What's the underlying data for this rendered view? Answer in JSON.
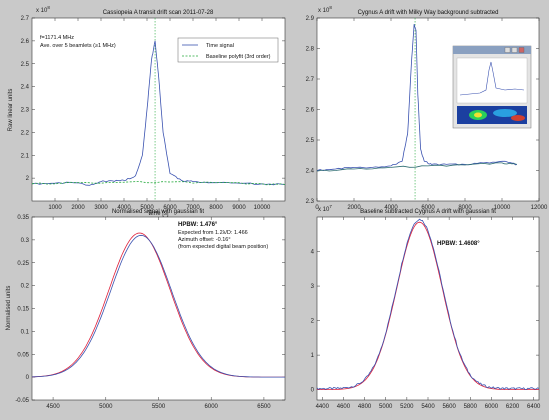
{
  "colors": {
    "figure_bg": "#c9c9c9",
    "axes_bg": "#ffffff",
    "blue": "#3a52b0",
    "red": "#e0203a",
    "green": "#22a83a",
    "teal": "#2f6e72"
  },
  "chart_data": [
    {
      "type": "line",
      "title": "Cassiopeia A transit drift scan 2011-07-28",
      "xlabel": "Time [s]",
      "ylabel": "Raw linear units",
      "exponent": "x 10",
      "exponent_power": "8",
      "xlim": [
        0,
        11000
      ],
      "ylim": [
        1.9,
        2.7
      ],
      "xticks": [
        1000,
        2000,
        3000,
        4000,
        5000,
        6000,
        7000,
        8000,
        9000,
        10000
      ],
      "xtick_labels": [
        "1000",
        "2000",
        "3000",
        "4000",
        "5000",
        "6000",
        "7000",
        "8000",
        "9000",
        "10000"
      ],
      "yticks": [
        2,
        2.1,
        2.2,
        2.3,
        2.4,
        2.5,
        2.6,
        2.7
      ],
      "ytick_labels": [
        "2",
        "2.1",
        "2.2",
        "2.3",
        "2.4",
        "2.5",
        "2.6",
        "2.7"
      ],
      "grid": false,
      "legend_placement": "top-right",
      "legend": [
        "Time signal",
        "Baseline polyfit (3rd order)"
      ],
      "annotations": [
        "f=1171.4 MHz",
        "Ave. over 5 beamlets (≥1 MHz)"
      ],
      "series": [
        {
          "name": "Time signal",
          "color": "#3a52b0",
          "x": [
            0,
            1000,
            2000,
            2500,
            3000,
            3500,
            4000,
            4500,
            4800,
            5000,
            5200,
            5350,
            5500,
            5700,
            6000,
            6500,
            7000,
            8000,
            9000,
            10000,
            11000
          ],
          "y": [
            1.975,
            1.978,
            1.98,
            1.968,
            1.985,
            1.988,
            1.99,
            2.01,
            2.1,
            2.3,
            2.52,
            2.6,
            2.45,
            2.2,
            2.02,
            1.99,
            1.985,
            1.98,
            1.978,
            1.975,
            1.972
          ]
        },
        {
          "name": "Baseline polyfit (3rd order)",
          "color": "#22a83a",
          "dash": true,
          "x": [
            0,
            2000,
            4000,
            6000,
            8000,
            10000,
            11000
          ],
          "y": [
            1.975,
            1.98,
            1.982,
            1.983,
            1.98,
            1.975,
            1.972
          ]
        }
      ],
      "vline_x": 5350
    },
    {
      "type": "line",
      "title": "Cygnus A drift with Milky Way background subtracted",
      "exponent": "x 10",
      "exponent_power": "8",
      "xlim": [
        0,
        12000
      ],
      "ylim": [
        2.3,
        2.9
      ],
      "xticks": [
        0,
        2000,
        4000,
        6000,
        8000,
        10000,
        12000
      ],
      "xtick_labels": [
        "0",
        "2000",
        "4000",
        "6000",
        "8000",
        "10000",
        "12000"
      ],
      "yticks": [
        2.3,
        2.4,
        2.5,
        2.6,
        2.7,
        2.8,
        2.9
      ],
      "ytick_labels": [
        "2.3",
        "2.4",
        "2.5",
        "2.6",
        "2.7",
        "2.8",
        "2.9"
      ],
      "grid": false,
      "series": [
        {
          "name": "",
          "color": "#3a52b0",
          "x": [
            0,
            1000,
            2000,
            3000,
            4000,
            4600,
            4900,
            5100,
            5250,
            5350,
            5450,
            5600,
            5800,
            6200,
            7000,
            8000,
            9000,
            10000,
            10500,
            10800
          ],
          "y": [
            2.4,
            2.405,
            2.41,
            2.41,
            2.415,
            2.43,
            2.52,
            2.75,
            2.88,
            2.86,
            2.65,
            2.47,
            2.43,
            2.42,
            2.42,
            2.42,
            2.425,
            2.43,
            2.425,
            2.42
          ]
        },
        {
          "name": "",
          "color": "#2f6e72",
          "x": [
            0,
            2000,
            4000,
            6000,
            8000,
            10000,
            10800
          ],
          "y": [
            2.398,
            2.405,
            2.41,
            2.415,
            2.418,
            2.425,
            2.42
          ]
        }
      ],
      "vline_x": 5300,
      "inset_screenshot": true
    },
    {
      "type": "line",
      "title": "Normalised signal with gaussian fit",
      "ylabel": "Normalised units",
      "xlim": [
        4300,
        6700
      ],
      "ylim": [
        -0.05,
        0.35
      ],
      "xticks": [
        4500,
        5000,
        5500,
        6000,
        6500
      ],
      "xtick_labels": [
        "4500",
        "5000",
        "5500",
        "6000",
        "6500"
      ],
      "yticks": [
        -0.05,
        0,
        0.05,
        0.1,
        0.15,
        0.2,
        0.25,
        0.3,
        0.35
      ],
      "ytick_labels": [
        "-0.05",
        "0",
        "0.05",
        "0.1",
        "0.15",
        "0.2",
        "0.25",
        "0.3",
        "0.35"
      ],
      "grid": false,
      "annotations": [
        "HPBW: 1.476°",
        "Expected from 1.2λ/D: 1.466",
        "Azimuth offset: -0.16°",
        "(from expected digital beam position)"
      ],
      "gaussian": {
        "center": 5320,
        "sigma": 290
      },
      "series": [
        {
          "name": "",
          "color": "#e0203a",
          "amplitude": 0.315,
          "offset": 0
        },
        {
          "name": "",
          "color": "#3a52b0",
          "amplitude": 0.31,
          "offset": 0.0,
          "shift": 15
        }
      ]
    },
    {
      "type": "line",
      "title": "Baseline subtracted Cygnus A drift with gaussian fit",
      "exponent": "x 10",
      "exponent_power": "7",
      "xlim": [
        4350,
        6450
      ],
      "ylim": [
        -0.3,
        5
      ],
      "xticks": [
        4400,
        4600,
        4800,
        5000,
        5200,
        5400,
        5600,
        5800,
        6000,
        6200,
        6400
      ],
      "xtick_labels": [
        "4400",
        "4600",
        "4800",
        "5000",
        "5200",
        "5400",
        "5600",
        "5800",
        "6000",
        "6200",
        "6400"
      ],
      "yticks": [
        0,
        1,
        2,
        3,
        4
      ],
      "ytick_labels": [
        "0",
        "1",
        "2",
        "3",
        "4"
      ],
      "grid": false,
      "annotations": [
        "HPBW: 1.4608°"
      ],
      "gaussian": {
        "center": 5320,
        "sigma": 215
      },
      "series": [
        {
          "name": "",
          "color": "#e0203a",
          "amplitude": 4.85,
          "offset": 0
        },
        {
          "name": "",
          "color": "#3a52b0",
          "amplitude": 4.9,
          "offset": 0.03,
          "noise": true
        }
      ]
    }
  ]
}
